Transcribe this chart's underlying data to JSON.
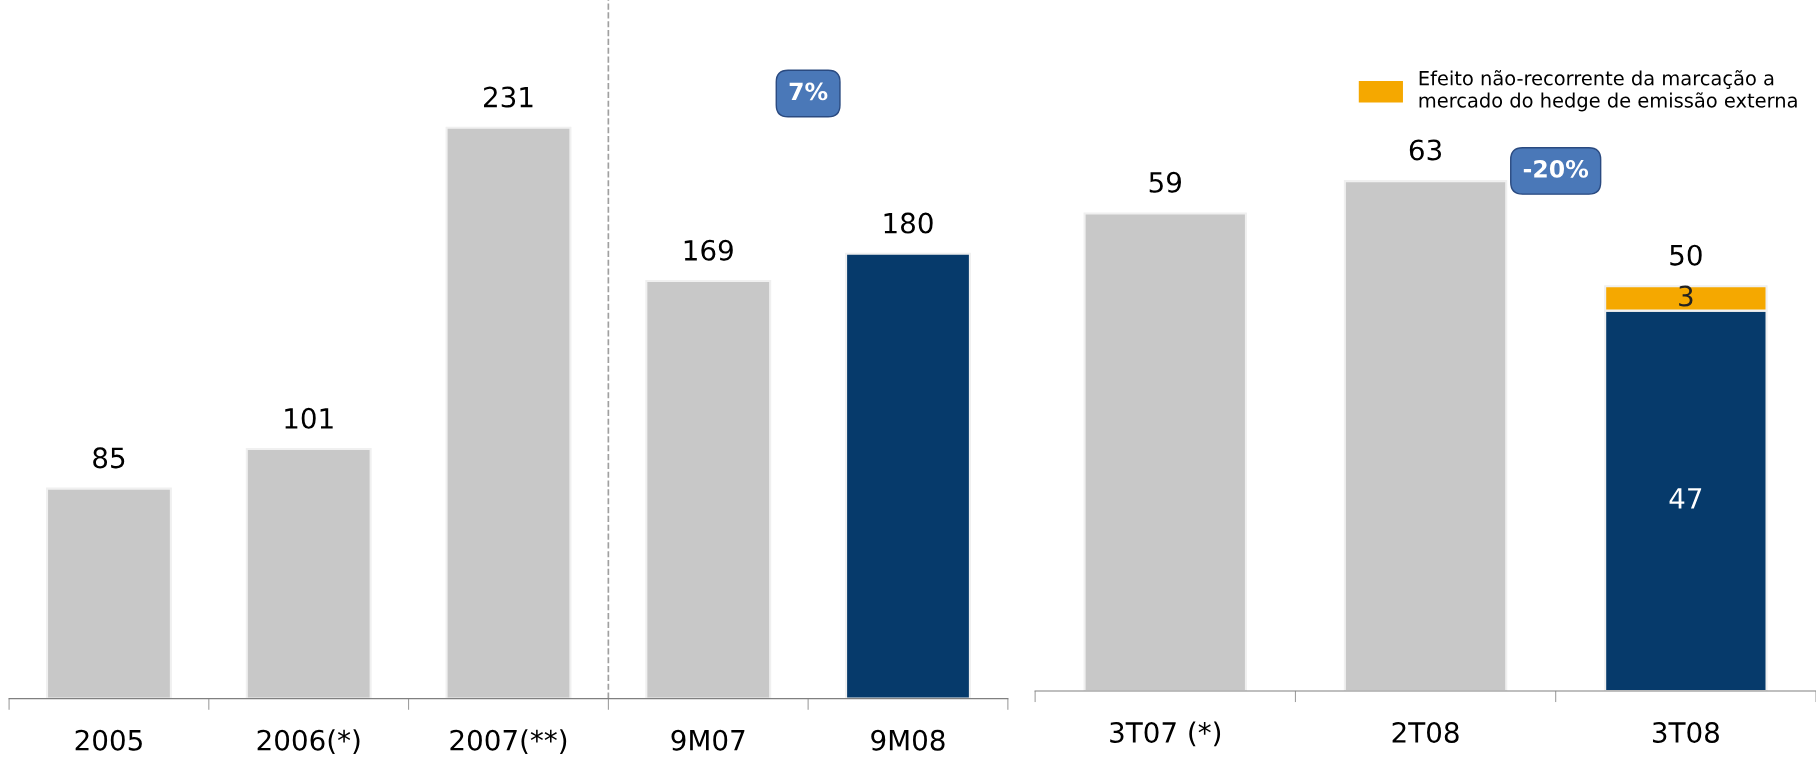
{
  "chart_data": [
    {
      "type": "bar",
      "categories": [
        "2005",
        "2006(*)",
        "2007(**)",
        "9M07",
        "9M08"
      ],
      "series": [
        {
          "values": [
            85,
            101,
            231,
            169,
            180
          ],
          "colors": [
            "#c8c8c8",
            "#c8c8c8",
            "#c8c8c8",
            "#c8c8c8",
            "#063a6b"
          ]
        }
      ],
      "data_labels": true,
      "annotations": [
        "7%"
      ]
    },
    {
      "type": "bar",
      "stacked": true,
      "categories": [
        "3T07 (*)",
        "2T08",
        "3T08"
      ],
      "series": [
        {
          "values": [
            59,
            63,
            47
          ],
          "colors": [
            "#c8c8c8",
            "#c8c8c8",
            "#063a6b"
          ],
          "value_labels": [
            null,
            null,
            "47"
          ]
        },
        {
          "name": "Efeito não-recorrente da marcação a mercado do hedge de emissão externa",
          "color": "#f5a800",
          "values": [
            null,
            null,
            3
          ],
          "value_labels": [
            null,
            null,
            "3"
          ]
        }
      ],
      "totals": [
        "59",
        "63",
        "50"
      ],
      "legend": "top right",
      "annotations": [
        "-20%"
      ]
    }
  ]
}
